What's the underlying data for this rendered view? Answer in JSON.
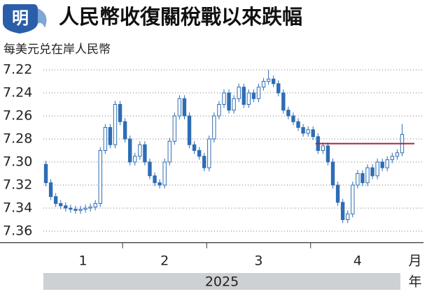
{
  "chart_data": {
    "type": "candlestick",
    "title": "人民幣收復關稅戰以來跌幅",
    "logo": "明",
    "subtitle": "每美元兑在岸人民幣",
    "ylim": [
      7.21,
      7.37
    ],
    "y_inverted": true,
    "yticks": [
      7.22,
      7.24,
      7.26,
      7.28,
      {
        "value": 7.3,
        "label": "7.30"
      },
      7.32,
      7.34,
      7.36
    ],
    "grid": true,
    "color": "#2e6db4",
    "x_unit": "月",
    "year": "2025",
    "year_unit": "年",
    "reference_line": {
      "value": 7.284,
      "color": "#a3283c"
    },
    "months": [
      {
        "label": "1",
        "open": [
          7.302,
          7.318,
          7.33,
          7.336,
          7.338,
          7.34,
          7.341,
          7.342,
          7.341,
          7.34,
          7.339,
          7.336,
          7.29,
          7.27,
          7.285,
          7.25
        ],
        "close": [
          7.318,
          7.33,
          7.336,
          7.338,
          7.34,
          7.341,
          7.342,
          7.341,
          7.34,
          7.339,
          7.336,
          7.29,
          7.27,
          7.285,
          7.25,
          7.265
        ],
        "high": [
          7.321,
          7.333,
          7.339,
          7.341,
          7.343,
          7.344,
          7.345,
          7.345,
          7.344,
          7.343,
          7.342,
          7.339,
          7.293,
          7.288,
          7.288,
          7.268
        ],
        "low": [
          7.299,
          7.315,
          7.327,
          7.333,
          7.335,
          7.337,
          7.338,
          7.338,
          7.337,
          7.336,
          7.333,
          7.287,
          7.267,
          7.267,
          7.247,
          7.247
        ]
      },
      {
        "label": "2",
        "open": [
          7.265,
          7.28,
          7.3,
          7.295,
          7.285,
          7.3,
          7.312,
          7.318,
          7.32,
          7.3,
          7.282,
          7.26,
          7.245,
          7.26,
          7.285,
          7.29,
          7.295
        ],
        "close": [
          7.28,
          7.3,
          7.295,
          7.285,
          7.3,
          7.312,
          7.318,
          7.32,
          7.3,
          7.282,
          7.26,
          7.245,
          7.26,
          7.285,
          7.29,
          7.295,
          7.305
        ],
        "high": [
          7.283,
          7.303,
          7.303,
          7.298,
          7.303,
          7.315,
          7.321,
          7.323,
          7.323,
          7.303,
          7.285,
          7.263,
          7.263,
          7.288,
          7.293,
          7.298,
          7.308
        ],
        "low": [
          7.262,
          7.277,
          7.292,
          7.282,
          7.282,
          7.297,
          7.309,
          7.315,
          7.297,
          7.279,
          7.257,
          7.242,
          7.242,
          7.257,
          7.282,
          7.287,
          7.292
        ]
      },
      {
        "label": "3",
        "open": [
          7.305,
          7.28,
          7.26,
          7.25,
          7.24,
          7.255,
          7.245,
          7.235,
          7.25,
          7.24,
          7.245,
          7.235,
          7.23,
          7.228,
          7.232,
          7.24,
          7.255,
          7.26,
          7.265,
          7.27,
          7.275
        ],
        "close": [
          7.28,
          7.26,
          7.25,
          7.24,
          7.255,
          7.245,
          7.235,
          7.25,
          7.24,
          7.245,
          7.235,
          7.23,
          7.228,
          7.232,
          7.24,
          7.255,
          7.26,
          7.265,
          7.27,
          7.275,
          7.272
        ],
        "high": [
          7.308,
          7.283,
          7.263,
          7.253,
          7.258,
          7.258,
          7.248,
          7.253,
          7.253,
          7.248,
          7.248,
          7.238,
          7.233,
          7.235,
          7.243,
          7.258,
          7.263,
          7.268,
          7.273,
          7.278,
          7.278
        ],
        "low": [
          7.277,
          7.257,
          7.247,
          7.237,
          7.237,
          7.242,
          7.232,
          7.232,
          7.237,
          7.237,
          7.232,
          7.227,
          7.22,
          7.225,
          7.229,
          7.237,
          7.252,
          7.257,
          7.262,
          7.267,
          7.269
        ]
      },
      {
        "label": "4",
        "open": [
          7.272,
          7.278,
          7.29,
          7.286,
          7.3,
          7.32,
          7.335,
          7.35,
          7.345,
          7.32,
          7.31,
          7.318,
          7.305,
          7.312,
          7.3,
          7.305,
          7.298,
          7.295,
          7.292
        ],
        "close": [
          7.278,
          7.29,
          7.286,
          7.3,
          7.32,
          7.335,
          7.35,
          7.345,
          7.32,
          7.31,
          7.318,
          7.305,
          7.312,
          7.3,
          7.305,
          7.298,
          7.295,
          7.292,
          7.276
        ],
        "high": [
          7.281,
          7.293,
          7.293,
          7.303,
          7.323,
          7.338,
          7.353,
          7.353,
          7.348,
          7.323,
          7.321,
          7.321,
          7.315,
          7.315,
          7.308,
          7.308,
          7.301,
          7.298,
          7.295
        ],
        "low": [
          7.269,
          7.275,
          7.283,
          7.283,
          7.297,
          7.317,
          7.332,
          7.342,
          7.317,
          7.307,
          7.307,
          7.302,
          7.302,
          7.297,
          7.297,
          7.295,
          7.292,
          7.289,
          7.267
        ]
      }
    ]
  }
}
